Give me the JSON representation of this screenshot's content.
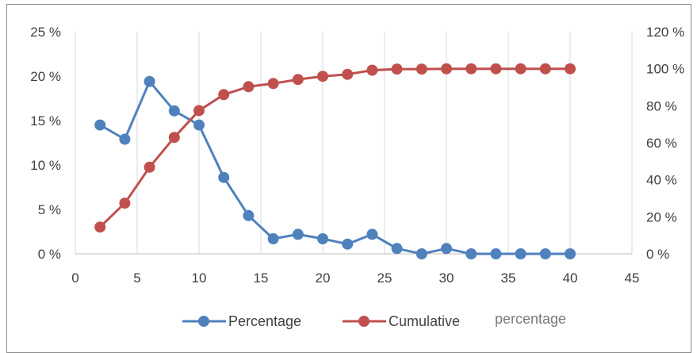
{
  "chart_data": {
    "type": "line",
    "x": [
      2,
      4,
      6,
      8,
      10,
      12,
      14,
      16,
      18,
      20,
      22,
      24,
      26,
      28,
      30,
      32,
      34,
      36,
      38,
      40
    ],
    "series": [
      {
        "name": "Percentage",
        "axis": "left",
        "color": "#4f81bd",
        "values": [
          14.5,
          12.9,
          19.4,
          16.1,
          14.5,
          8.6,
          4.3,
          1.7,
          2.2,
          1.7,
          1.1,
          2.2,
          0.6,
          0.0,
          0.6,
          0.0,
          0.0,
          0.0,
          0.0,
          0.0
        ]
      },
      {
        "name": "Cumulative",
        "axis": "right",
        "color": "#c0504d",
        "values": [
          14.5,
          27.4,
          46.8,
          62.9,
          77.4,
          86.0,
          90.3,
          92.0,
          94.2,
          95.9,
          97.0,
          99.2,
          99.8,
          99.8,
          100.0,
          100.0,
          100.0,
          100.0,
          100.0,
          100.0
        ]
      }
    ],
    "xlim": [
      0,
      45
    ],
    "x_ticks": [
      "0",
      "5",
      "10",
      "15",
      "20",
      "25",
      "30",
      "35",
      "40",
      "45"
    ],
    "ylim_left": [
      0,
      25
    ],
    "y_left_ticks": [
      "0 %",
      "5 %",
      "10 %",
      "15 %",
      "20 %",
      "25 %"
    ],
    "ylim_right": [
      0,
      120
    ],
    "y_right_ticks": [
      "0 %",
      "20 %",
      "40 %",
      "60 %",
      "80 %",
      "100 %",
      "120 %"
    ],
    "grid": "vertical",
    "legend_position": "bottom",
    "legend_extra_text": "percentage",
    "title": "",
    "xlabel": "",
    "ylabel": ""
  }
}
